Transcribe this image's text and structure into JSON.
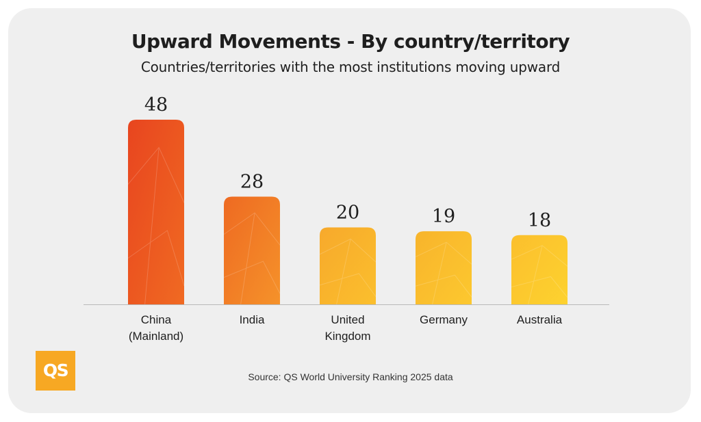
{
  "title": "Upward Movements - By country/territory",
  "subtitle": "Countries/territories with the most institutions moving upward",
  "source": "Source: QS World University Ranking 2025 data",
  "logo": "QS",
  "colors": {
    "card_background": "#efefef",
    "logo_background": "#f7a823",
    "bar_gradients": [
      [
        "#e8451f",
        "#f06a22"
      ],
      [
        "#ee6a22",
        "#f5922a"
      ],
      [
        "#f7a92c",
        "#fbbf2d"
      ],
      [
        "#f8b42c",
        "#fcc82f"
      ],
      [
        "#fbbf2d",
        "#fdd22f"
      ]
    ]
  },
  "chart_data": {
    "type": "bar",
    "categories": [
      [
        "China",
        "(Mainland)"
      ],
      [
        "India"
      ],
      [
        "United",
        "Kingdom"
      ],
      [
        "Germany"
      ],
      [
        "Australia"
      ]
    ],
    "values": [
      48,
      28,
      20,
      19,
      18
    ],
    "title": "Upward Movements - By country/territory",
    "subtitle": "Countries/territories with the most institutions moving upward",
    "xlabel": "",
    "ylabel": "",
    "ylim": [
      0,
      48
    ],
    "grid": false,
    "legend": "none",
    "data_labels": true
  }
}
